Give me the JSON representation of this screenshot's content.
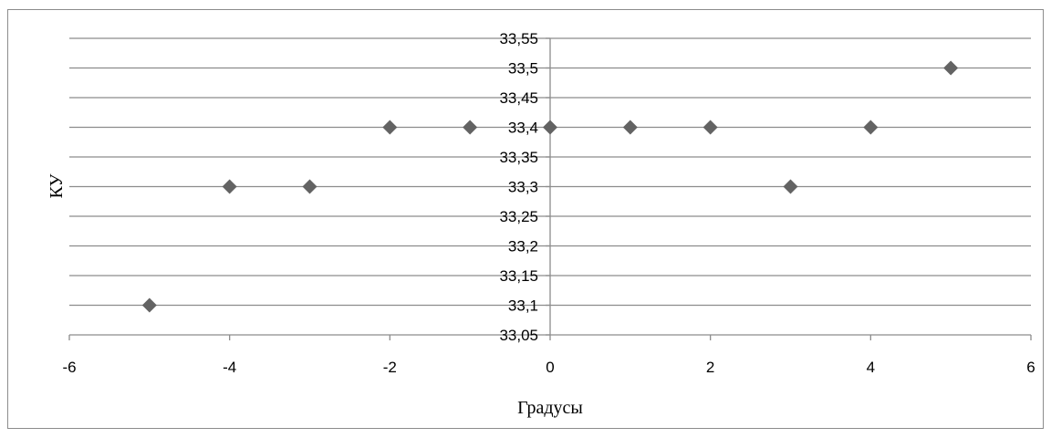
{
  "chart_data": {
    "type": "scatter",
    "title": "",
    "xlabel": "Градусы",
    "ylabel": "КУ",
    "xlim": [
      -6,
      6
    ],
    "ylim": [
      33.05,
      33.55
    ],
    "x_ticks": [
      -6,
      -4,
      -2,
      0,
      2,
      4,
      6
    ],
    "x_tick_labels": [
      "-6",
      "-4",
      "-2",
      "0",
      "2",
      "4",
      "6"
    ],
    "y_ticks": [
      33.05,
      33.1,
      33.15,
      33.2,
      33.25,
      33.3,
      33.35,
      33.4,
      33.45,
      33.5,
      33.55
    ],
    "y_tick_labels": [
      "33,05",
      "33,1",
      "33,15",
      "33,2",
      "33,25",
      "33,3",
      "33,35",
      "33,4",
      "33,45",
      "33,5",
      "33,55"
    ],
    "grid": "horizontal",
    "legend": "none",
    "marker": "diamond",
    "colors": {
      "marker": "#636363",
      "grid": "#8c8c8c",
      "axis": "#8c8c8c"
    },
    "series": [
      {
        "x": [
          -5,
          -4,
          -3,
          -2,
          -1,
          0,
          1,
          2,
          3,
          4,
          5
        ],
        "y": [
          33.1,
          33.3,
          33.3,
          33.4,
          33.4,
          33.4,
          33.4,
          33.4,
          33.3,
          33.4,
          33.5
        ]
      }
    ]
  }
}
